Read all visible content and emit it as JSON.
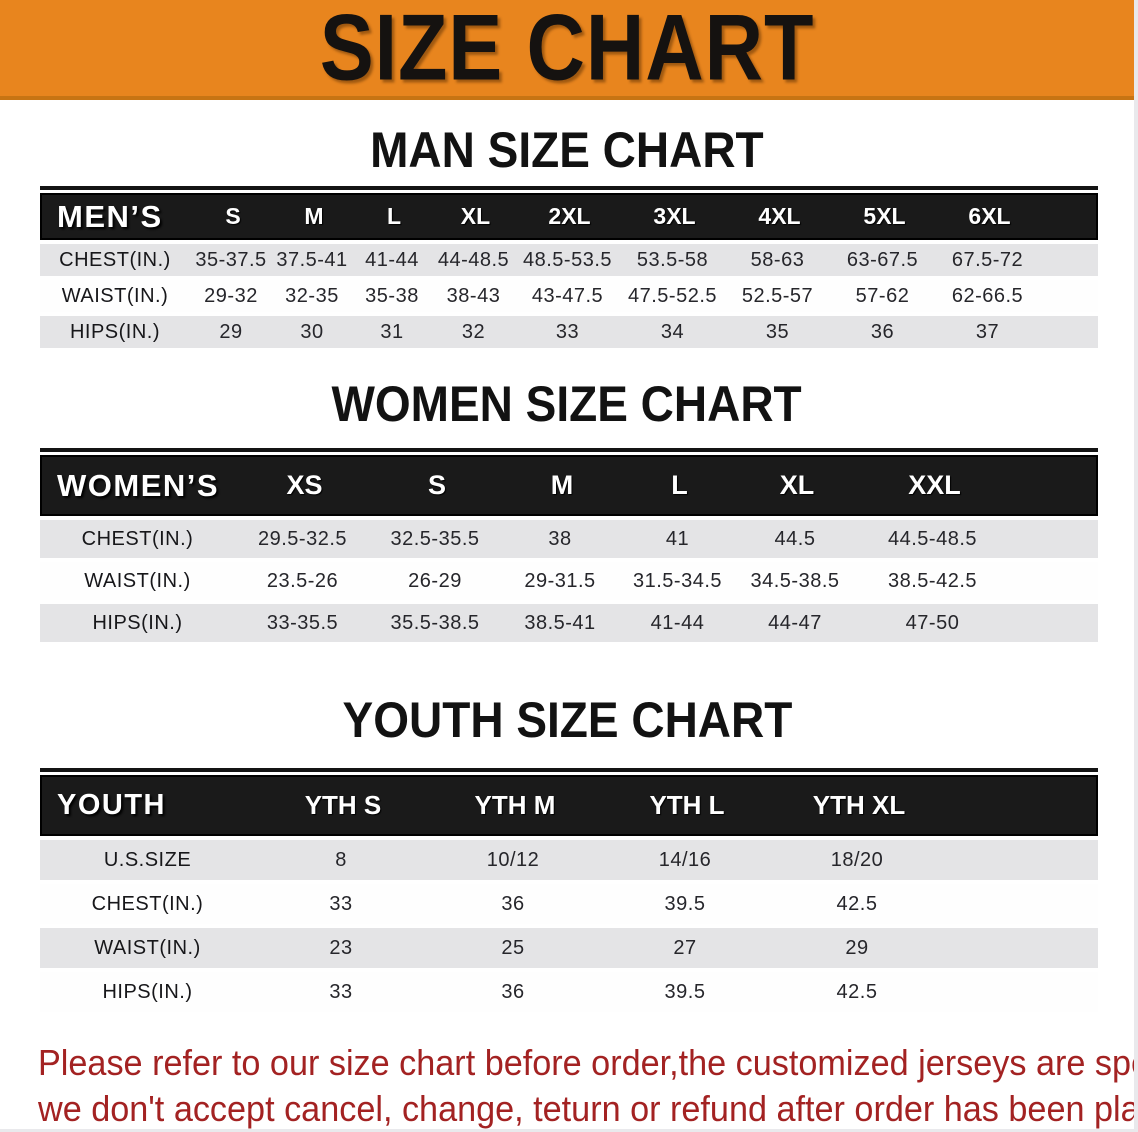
{
  "banner": {
    "title": "SIZE CHART",
    "bg_color": "#E8851E",
    "text_color": "#151210"
  },
  "colors": {
    "header_band": "#1a1a1a",
    "row_gray": "#e4e4e6",
    "row_white": "#fefefe",
    "footer_red": "#A32222"
  },
  "sections": {
    "men": {
      "heading": "MAN SIZE CHART",
      "corner": "MEN’S",
      "columns": [
        "S",
        "M",
        "L",
        "XL",
        "2XL",
        "3XL",
        "4XL",
        "5XL",
        "6XL"
      ],
      "rows": [
        {
          "label": "CHEST(IN.)",
          "values": [
            "35-37.5",
            "37.5-41",
            "41-44",
            "44-48.5",
            "48.5-53.5",
            "53.5-58",
            "58-63",
            "63-67.5",
            "67.5-72"
          ]
        },
        {
          "label": "WAIST(IN.)",
          "values": [
            "29-32",
            "32-35",
            "35-38",
            "38-43",
            "43-47.5",
            "47.5-52.5",
            "52.5-57",
            "57-62",
            "62-66.5"
          ]
        },
        {
          "label": "HIPS(IN.)",
          "values": [
            "29",
            "30",
            "31",
            "32",
            "33",
            "34",
            "35",
            "36",
            "37"
          ]
        }
      ]
    },
    "women": {
      "heading": "WOMEN SIZE CHART",
      "corner": "WOMEN’S",
      "columns": [
        "XS",
        "S",
        "M",
        "L",
        "XL",
        "XXL"
      ],
      "rows": [
        {
          "label": "CHEST(IN.)",
          "values": [
            "29.5-32.5",
            "32.5-35.5",
            "38",
            "41",
            "44.5",
            "44.5-48.5"
          ]
        },
        {
          "label": "WAIST(IN.)",
          "values": [
            "23.5-26",
            "26-29",
            "29-31.5",
            "31.5-34.5",
            "34.5-38.5",
            "38.5-42.5"
          ]
        },
        {
          "label": "HIPS(IN.)",
          "values": [
            "33-35.5",
            "35.5-38.5",
            "38.5-41",
            "41-44",
            "44-47",
            "47-50"
          ]
        }
      ]
    },
    "youth": {
      "heading": "YOUTH SIZE CHART",
      "corner": "YOUTH",
      "columns": [
        "YTH S",
        "YTH M",
        "YTH L",
        "YTH XL"
      ],
      "rows": [
        {
          "label": "U.S.SIZE",
          "values": [
            "8",
            "10/12",
            "14/16",
            "18/20"
          ]
        },
        {
          "label": "CHEST(IN.)",
          "values": [
            "33",
            "36",
            "39.5",
            "42.5"
          ]
        },
        {
          "label": "WAIST(IN.)",
          "values": [
            "23",
            "25",
            "27",
            "29"
          ]
        },
        {
          "label": "HIPS(IN.)",
          "values": [
            "33",
            "36",
            "39.5",
            "42.5"
          ]
        }
      ]
    }
  },
  "footer": {
    "line1": "Please refer to our size chart before order,the customized jerseys are special products,",
    "line2": "we don't accept cancel, change, teturn or refund after order has been placed!"
  }
}
